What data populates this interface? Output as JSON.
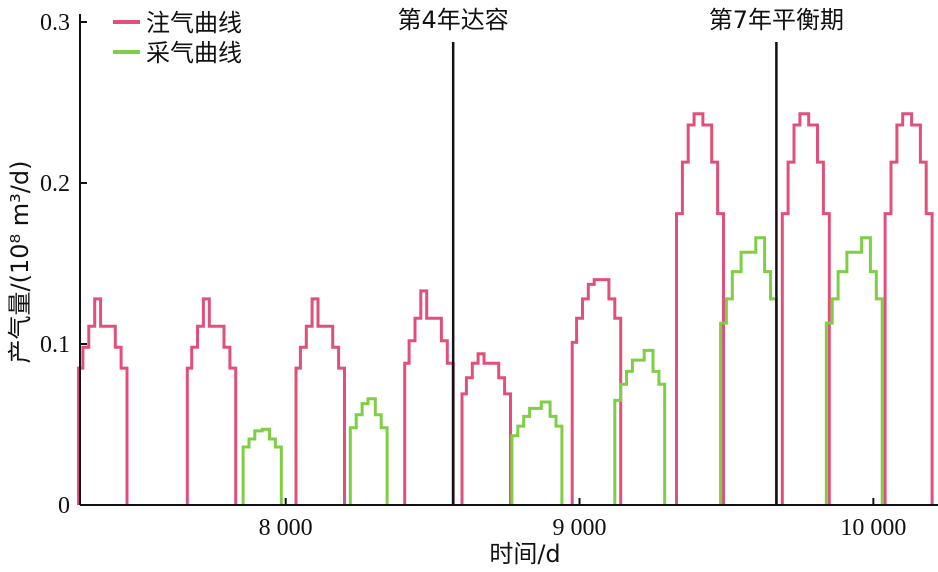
{
  "chart_data": {
    "type": "line",
    "xlabel": "时间/d",
    "ylabel": "产气量/(10⁸ m³/d)",
    "xlim": [
      7300,
      10220
    ],
    "ylim": [
      0,
      0.3
    ],
    "x_ticks": [
      {
        "value": 8000,
        "label": "8 000"
      },
      {
        "value": 9000,
        "label": "9 000"
      },
      {
        "value": 10000,
        "label": "10 000"
      }
    ],
    "y_ticks": [
      {
        "value": 0,
        "label": "0"
      },
      {
        "value": 0.1,
        "label": "0.1"
      },
      {
        "value": 0.2,
        "label": "0.2"
      },
      {
        "value": 0.3,
        "label": "0.3"
      }
    ],
    "legend_position": "top-left",
    "series": [
      {
        "name": "注气曲线",
        "color": "#e0507a",
        "cycles": [
          {
            "x": [
              7295,
              7310,
              7330,
              7350,
              7370,
              7420,
              7440,
              7460
            ],
            "y": [
              0.085,
              0.098,
              0.111,
              0.128,
              0.111,
              0.098,
              0.085,
              0
            ]
          },
          {
            "x": [
              7665,
              7680,
              7700,
              7720,
              7740,
              7790,
              7810,
              7830
            ],
            "y": [
              0.085,
              0.098,
              0.111,
              0.128,
              0.111,
              0.098,
              0.085,
              0
            ]
          },
          {
            "x": [
              8035,
              8050,
              8070,
              8090,
              8110,
              8160,
              8180,
              8200
            ],
            "y": [
              0.085,
              0.098,
              0.111,
              0.128,
              0.111,
              0.098,
              0.085,
              0
            ]
          },
          {
            "x": [
              8405,
              8420,
              8440,
              8460,
              8480,
              8530,
              8550,
              8570
            ],
            "y": [
              0.088,
              0.102,
              0.116,
              0.133,
              0.116,
              0.102,
              0.088,
              0
            ]
          },
          {
            "x": [
              8600,
              8615,
              8635,
              8655,
              8675,
              8725,
              8745,
              8765
            ],
            "y": [
              0.069,
              0.079,
              0.088,
              0.094,
              0.088,
              0.079,
              0.069,
              0
            ]
          },
          {
            "x": [
              8975,
              8990,
              9010,
              9030,
              9050,
              9100,
              9120,
              9140
            ],
            "y": [
              0.101,
              0.116,
              0.128,
              0.137,
              0.14,
              0.128,
              0.116,
              0
            ]
          },
          {
            "x": [
              9330,
              9350,
              9370,
              9390,
              9420,
              9450,
              9470,
              9490
            ],
            "y": [
              0.181,
              0.213,
              0.236,
              0.243,
              0.236,
              0.213,
              0.181,
              0
            ]
          },
          {
            "x": [
              9690,
              9710,
              9730,
              9750,
              9780,
              9810,
              9830,
              9850
            ],
            "y": [
              0.181,
              0.213,
              0.236,
              0.243,
              0.236,
              0.213,
              0.181,
              0
            ]
          },
          {
            "x": [
              10040,
              10060,
              10080,
              10100,
              10130,
              10160,
              10180,
              10200
            ],
            "y": [
              0.181,
              0.213,
              0.236,
              0.243,
              0.236,
              0.213,
              0.181,
              0
            ]
          }
        ]
      },
      {
        "name": "采气曲线",
        "color": "#7ecf45",
        "cycles": [
          {
            "x": [
              7855,
              7875,
              7895,
              7920,
              7945,
              7965,
              7985
            ],
            "y": [
              0.036,
              0.041,
              0.046,
              0.047,
              0.041,
              0.036,
              0
            ]
          },
          {
            "x": [
              8220,
              8240,
              8260,
              8280,
              8305,
              8325,
              8345
            ],
            "y": [
              0.048,
              0.056,
              0.063,
              0.066,
              0.056,
              0.048,
              0
            ]
          },
          {
            "x": [
              8770,
              8790,
              8810,
              8830,
              8870,
              8900,
              8920,
              8940
            ],
            "y": [
              0.043,
              0.049,
              0.055,
              0.06,
              0.064,
              0.055,
              0.049,
              0
            ]
          },
          {
            "x": [
              9120,
              9140,
              9160,
              9180,
              9220,
              9250,
              9270,
              9290
            ],
            "y": [
              0.065,
              0.075,
              0.083,
              0.09,
              0.096,
              0.083,
              0.075,
              0
            ]
          },
          {
            "x": [
              9480,
              9500,
              9520,
              9550,
              9600,
              9630,
              9650,
              9670
            ],
            "y": [
              0.113,
              0.128,
              0.145,
              0.157,
              0.166,
              0.145,
              0.128,
              0
            ]
          },
          {
            "x": [
              9840,
              9860,
              9880,
              9910,
              9960,
              9990,
              10010,
              10030
            ],
            "y": [
              0.113,
              0.128,
              0.145,
              0.157,
              0.166,
              0.145,
              0.128,
              0
            ]
          }
        ]
      }
    ],
    "annotations": [
      {
        "x": 8570,
        "text": "第4年达容"
      },
      {
        "x": 9670,
        "text": "第7年平衡期"
      }
    ]
  }
}
